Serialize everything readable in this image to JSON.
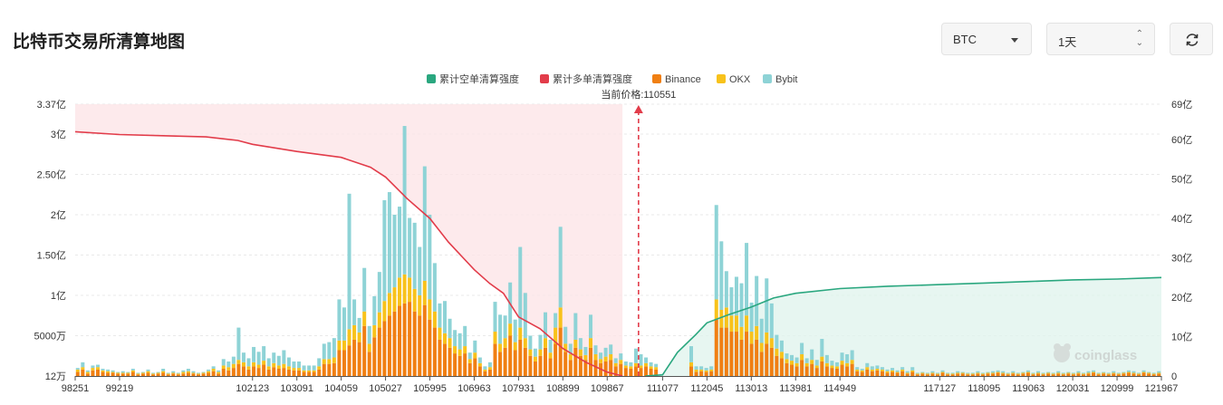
{
  "page": {
    "title": "比特币交易所清算地图",
    "coin_select": {
      "value": "BTC"
    },
    "range_select": {
      "value": "1天"
    }
  },
  "chart_data": {
    "type": "bar",
    "current_price_label": "当前价格:110551",
    "current_price": 110551,
    "legend_placement": "top-center",
    "grid": true,
    "legend": [
      {
        "name": "累计空单清算强度",
        "color": "#2aa77f"
      },
      {
        "name": "累计多单清算强度",
        "color": "#e23c4a"
      },
      {
        "name": "Binance",
        "color": "#f07f13"
      },
      {
        "name": "OKX",
        "color": "#f8c21b"
      },
      {
        "name": "Bybit",
        "color": "#8ed3d6"
      }
    ],
    "xlim": [
      98251,
      121967
    ],
    "x_ticks": [
      98251,
      99219,
      102123,
      103091,
      104059,
      105027,
      105995,
      106963,
      107931,
      108899,
      109867,
      111077,
      112045,
      113013,
      113981,
      114949,
      117127,
      118095,
      119063,
      120031,
      120999,
      121967
    ],
    "x_tick_labels": [
      "98251",
      "99219",
      "102123",
      "103091",
      "104059",
      "105027",
      "105995",
      "106963",
      "107931",
      "108899",
      "109867",
      "111077",
      "112045",
      "113013",
      "113981",
      "114949",
      "117127",
      "118095",
      "119063",
      "120031",
      "120999",
      "121967"
    ],
    "left_axis": {
      "ylim": [
        0,
        3.37
      ],
      "unit": "亿",
      "ticks": [
        0,
        0.5,
        1,
        1.5,
        2,
        2.5,
        3,
        3.37
      ],
      "tick_labels": [
        "12万",
        "5000万",
        "1亿",
        "1.50亿",
        "2亿",
        "2.50亿",
        "3亿",
        "3.37亿"
      ]
    },
    "right_axis": {
      "ylim": [
        0,
        69
      ],
      "unit": "亿",
      "ticks": [
        0,
        10,
        20,
        30,
        40,
        50,
        60,
        69
      ],
      "tick_labels": [
        "0",
        "10亿",
        "20亿",
        "30亿",
        "40亿",
        "50亿",
        "60亿",
        "69亿"
      ]
    },
    "bars": [
      [
        0.05,
        0.03,
        0.02
      ],
      [
        0.08,
        0.03,
        0.06
      ],
      [
        0.03,
        0.02,
        0.02
      ],
      [
        0.07,
        0.03,
        0.03
      ],
      [
        0.08,
        0.03,
        0.03
      ],
      [
        0.05,
        0.02,
        0.02
      ],
      [
        0.04,
        0.02,
        0.02
      ],
      [
        0.04,
        0.01,
        0.02
      ],
      [
        0.03,
        0.01,
        0.01
      ],
      [
        0.03,
        0.01,
        0.02
      ],
      [
        0.03,
        0.01,
        0.01
      ],
      [
        0.05,
        0.02,
        0.02
      ],
      [
        0.02,
        0.01,
        0.01
      ],
      [
        0.03,
        0.01,
        0.01
      ],
      [
        0.04,
        0.02,
        0.02
      ],
      [
        0.02,
        0.01,
        0.01
      ],
      [
        0.03,
        0.01,
        0.01
      ],
      [
        0.04,
        0.02,
        0.03
      ],
      [
        0.02,
        0.01,
        0.01
      ],
      [
        0.03,
        0.01,
        0.02
      ],
      [
        0.02,
        0.01,
        0.01
      ],
      [
        0.03,
        0.02,
        0.02
      ],
      [
        0.04,
        0.02,
        0.03
      ],
      [
        0.03,
        0.01,
        0.02
      ],
      [
        0.02,
        0.01,
        0.01
      ],
      [
        0.03,
        0.01,
        0.01
      ],
      [
        0.04,
        0.02,
        0.02
      ],
      [
        0.06,
        0.03,
        0.03
      ],
      [
        0.03,
        0.02,
        0.02
      ],
      [
        0.09,
        0.04,
        0.08
      ],
      [
        0.07,
        0.04,
        0.07
      ],
      [
        0.1,
        0.05,
        0.09
      ],
      [
        0.15,
        0.05,
        0.4
      ],
      [
        0.12,
        0.05,
        0.12
      ],
      [
        0.08,
        0.04,
        0.1
      ],
      [
        0.12,
        0.05,
        0.19
      ],
      [
        0.1,
        0.04,
        0.16
      ],
      [
        0.14,
        0.05,
        0.18
      ],
      [
        0.08,
        0.04,
        0.1
      ],
      [
        0.11,
        0.05,
        0.13
      ],
      [
        0.09,
        0.04,
        0.12
      ],
      [
        0.1,
        0.05,
        0.17
      ],
      [
        0.08,
        0.04,
        0.11
      ],
      [
        0.07,
        0.03,
        0.08
      ],
      [
        0.07,
        0.03,
        0.08
      ],
      [
        0.05,
        0.02,
        0.06
      ],
      [
        0.05,
        0.02,
        0.06
      ],
      [
        0.05,
        0.02,
        0.06
      ],
      [
        0.08,
        0.04,
        0.1
      ],
      [
        0.15,
        0.06,
        0.19
      ],
      [
        0.15,
        0.06,
        0.21
      ],
      [
        0.16,
        0.07,
        0.24
      ],
      [
        0.32,
        0.12,
        0.51
      ],
      [
        0.32,
        0.12,
        0.41
      ],
      [
        0.38,
        0.2,
        1.68
      ],
      [
        0.45,
        0.18,
        0.32
      ],
      [
        0.42,
        0.12,
        0.18
      ],
      [
        0.62,
        0.18,
        0.54
      ],
      [
        0.3,
        0.1,
        0.22
      ],
      [
        0.48,
        0.15,
        0.36
      ],
      [
        0.6,
        0.19,
        0.5
      ],
      [
        0.68,
        0.25,
        1.25
      ],
      [
        0.75,
        0.28,
        1.25
      ],
      [
        0.8,
        0.3,
        0.9
      ],
      [
        0.87,
        0.35,
        0.88
      ],
      [
        0.9,
        0.36,
        1.84
      ],
      [
        0.92,
        0.3,
        0.74
      ],
      [
        0.8,
        0.28,
        0.82
      ],
      [
        0.75,
        0.25,
        0.6
      ],
      [
        0.88,
        0.3,
        1.42
      ],
      [
        0.7,
        0.25,
        1.05
      ],
      [
        0.6,
        0.2,
        0.6
      ],
      [
        0.45,
        0.15,
        0.3
      ],
      [
        0.4,
        0.13,
        0.4
      ],
      [
        0.35,
        0.12,
        0.24
      ],
      [
        0.28,
        0.09,
        0.2
      ],
      [
        0.25,
        0.08,
        0.2
      ],
      [
        0.28,
        0.09,
        0.25
      ],
      [
        0.16,
        0.05,
        0.08
      ],
      [
        0.22,
        0.07,
        0.15
      ],
      [
        0.12,
        0.04,
        0.07
      ],
      [
        0.06,
        0.02,
        0.04
      ],
      [
        0.08,
        0.03,
        0.06
      ],
      [
        0.4,
        0.15,
        0.37
      ],
      [
        0.3,
        0.1,
        0.36
      ],
      [
        0.35,
        0.12,
        0.28
      ],
      [
        0.5,
        0.15,
        0.51
      ],
      [
        0.32,
        0.1,
        0.28
      ],
      [
        0.45,
        0.15,
        1.0
      ],
      [
        0.35,
        0.12,
        0.56
      ],
      [
        0.25,
        0.08,
        0.17
      ],
      [
        0.18,
        0.06,
        0.1
      ],
      [
        0.25,
        0.08,
        0.18
      ],
      [
        0.35,
        0.12,
        0.32
      ],
      [
        0.22,
        0.07,
        0.16
      ],
      [
        0.4,
        0.2,
        0.18
      ],
      [
        0.6,
        0.25,
        1.0
      ],
      [
        0.3,
        0.1,
        0.21
      ],
      [
        0.2,
        0.07,
        0.13
      ],
      [
        0.35,
        0.1,
        0.33
      ],
      [
        0.25,
        0.08,
        0.14
      ],
      [
        0.2,
        0.06,
        0.1
      ],
      [
        0.35,
        0.12,
        0.29
      ],
      [
        0.2,
        0.07,
        0.11
      ],
      [
        0.16,
        0.05,
        0.08
      ],
      [
        0.18,
        0.06,
        0.11
      ],
      [
        0.2,
        0.07,
        0.12
      ],
      [
        0.12,
        0.04,
        0.06
      ],
      [
        0.15,
        0.05,
        0.08
      ],
      [
        0.1,
        0.03,
        0.05
      ],
      [
        0.09,
        0.03,
        0.05
      ],
      [
        0.12,
        0.04,
        0.18
      ],
      [
        0.1,
        0.03,
        0.14
      ],
      [
        0.12,
        0.04,
        0.07
      ],
      [
        0.09,
        0.03,
        0.05
      ],
      [
        0.08,
        0.03,
        0.04
      ],
      null,
      null,
      null,
      null,
      null,
      null,
      [
        0.12,
        0.05,
        0.2
      ],
      [
        0.05,
        0.03,
        0.04
      ],
      [
        0.06,
        0.02,
        0.04
      ],
      [
        0.05,
        0.02,
        0.03
      ],
      [
        0.06,
        0.02,
        0.04
      ],
      [
        0.7,
        0.25,
        1.17
      ],
      [
        0.6,
        0.22,
        0.85
      ],
      [
        0.6,
        0.25,
        0.45
      ],
      [
        0.55,
        0.2,
        0.35
      ],
      [
        0.55,
        0.2,
        0.48
      ],
      [
        0.45,
        0.16,
        0.54
      ],
      [
        0.55,
        0.2,
        0.9
      ],
      [
        0.4,
        0.15,
        0.36
      ],
      [
        0.45,
        0.17,
        0.62
      ],
      [
        0.3,
        0.11,
        0.3
      ],
      [
        0.4,
        0.14,
        0.67
      ],
      [
        0.35,
        0.12,
        0.43
      ],
      [
        0.25,
        0.09,
        0.17
      ],
      [
        0.22,
        0.08,
        0.14
      ],
      [
        0.16,
        0.05,
        0.07
      ],
      [
        0.14,
        0.05,
        0.07
      ],
      [
        0.12,
        0.04,
        0.07
      ],
      [
        0.2,
        0.07,
        0.14
      ],
      [
        0.12,
        0.04,
        0.06
      ],
      [
        0.15,
        0.05,
        0.13
      ],
      [
        0.1,
        0.03,
        0.07
      ],
      [
        0.18,
        0.06,
        0.22
      ],
      [
        0.12,
        0.04,
        0.1
      ],
      [
        0.1,
        0.03,
        0.06
      ],
      [
        0.09,
        0.03,
        0.05
      ],
      [
        0.14,
        0.05,
        0.1
      ],
      [
        0.12,
        0.04,
        0.11
      ],
      [
        0.15,
        0.05,
        0.12
      ],
      [
        0.06,
        0.02,
        0.03
      ],
      [
        0.05,
        0.02,
        0.02
      ],
      [
        0.08,
        0.03,
        0.05
      ],
      [
        0.06,
        0.02,
        0.04
      ],
      [
        0.07,
        0.02,
        0.04
      ],
      [
        0.06,
        0.02,
        0.03
      ],
      [
        0.04,
        0.02,
        0.02
      ],
      [
        0.05,
        0.02,
        0.03
      ],
      [
        0.04,
        0.01,
        0.02
      ],
      [
        0.06,
        0.02,
        0.03
      ],
      [
        0.03,
        0.01,
        0.02
      ],
      [
        0.05,
        0.02,
        0.04
      ],
      [
        0.02,
        0.01,
        0.01
      ],
      [
        0.03,
        0.01,
        0.01
      ],
      [
        0.02,
        0.01,
        0.01
      ],
      [
        0.03,
        0.01,
        0.02
      ],
      [
        0.02,
        0.01,
        0.01
      ],
      [
        0.04,
        0.01,
        0.02
      ],
      [
        0.02,
        0.01,
        0.01
      ],
      [
        0.02,
        0.01,
        0.01
      ],
      [
        0.03,
        0.01,
        0.02
      ],
      [
        0.03,
        0.01,
        0.01
      ],
      [
        0.02,
        0.01,
        0.01
      ],
      [
        0.02,
        0.01,
        0.01
      ],
      [
        0.03,
        0.01,
        0.02
      ],
      [
        0.02,
        0.01,
        0.01
      ],
      [
        0.03,
        0.01,
        0.01
      ],
      [
        0.03,
        0.01,
        0.02
      ],
      [
        0.04,
        0.01,
        0.02
      ],
      [
        0.03,
        0.01,
        0.02
      ],
      [
        0.02,
        0.01,
        0.01
      ],
      [
        0.03,
        0.01,
        0.02
      ],
      [
        0.02,
        0.01,
        0.01
      ],
      [
        0.03,
        0.01,
        0.01
      ],
      [
        0.04,
        0.01,
        0.02
      ],
      [
        0.02,
        0.01,
        0.01
      ],
      [
        0.03,
        0.01,
        0.02
      ],
      [
        0.02,
        0.01,
        0.01
      ],
      [
        0.03,
        0.01,
        0.01
      ],
      [
        0.02,
        0.01,
        0.01
      ],
      [
        0.03,
        0.01,
        0.02
      ],
      [
        0.02,
        0.01,
        0.01
      ],
      [
        0.03,
        0.01,
        0.01
      ],
      [
        0.02,
        0.01,
        0.01
      ],
      [
        0.03,
        0.01,
        0.02
      ],
      [
        0.02,
        0.01,
        0.01
      ],
      [
        0.03,
        0.01,
        0.02
      ],
      [
        0.04,
        0.01,
        0.02
      ],
      [
        0.02,
        0.01,
        0.01
      ],
      [
        0.03,
        0.01,
        0.01
      ],
      [
        0.02,
        0.01,
        0.01
      ],
      [
        0.03,
        0.01,
        0.02
      ],
      [
        0.02,
        0.01,
        0.01
      ],
      [
        0.03,
        0.01,
        0.01
      ],
      [
        0.04,
        0.01,
        0.02
      ],
      [
        0.03,
        0.01,
        0.02
      ],
      [
        0.02,
        0.01,
        0.01
      ],
      [
        0.04,
        0.01,
        0.02
      ],
      [
        0.03,
        0.01,
        0.01
      ],
      [
        0.02,
        0.01,
        0.01
      ],
      [
        0.03,
        0.01,
        0.02
      ]
    ],
    "long_cumulative": [
      [
        98251,
        62
      ],
      [
        99219,
        61.3
      ],
      [
        100171,
        61
      ],
      [
        101107,
        60.7
      ],
      [
        101800,
        59.8
      ],
      [
        102123,
        58.8
      ],
      [
        103091,
        57
      ],
      [
        104059,
        55.5
      ],
      [
        104700,
        53
      ],
      [
        105027,
        50.5
      ],
      [
        105500,
        45
      ],
      [
        105995,
        40
      ],
      [
        106400,
        34
      ],
      [
        106963,
        27
      ],
      [
        107300,
        23.5
      ],
      [
        107600,
        21
      ],
      [
        107931,
        15
      ],
      [
        108400,
        12
      ],
      [
        108899,
        7
      ],
      [
        109400,
        3.5
      ],
      [
        109867,
        1
      ],
      [
        110200,
        0
      ]
    ],
    "short_cumulative": [
      [
        110700,
        0
      ],
      [
        111077,
        0.3
      ],
      [
        111400,
        6
      ],
      [
        111800,
        10.5
      ],
      [
        112045,
        13.5
      ],
      [
        112500,
        15.5
      ],
      [
        113013,
        17.5
      ],
      [
        113500,
        19.8
      ],
      [
        113981,
        21
      ],
      [
        114949,
        22.2
      ],
      [
        116000,
        22.8
      ],
      [
        117127,
        23.2
      ],
      [
        118095,
        23.6
      ],
      [
        119063,
        24
      ],
      [
        120031,
        24.4
      ],
      [
        120999,
        24.6
      ],
      [
        121967,
        25
      ]
    ]
  }
}
